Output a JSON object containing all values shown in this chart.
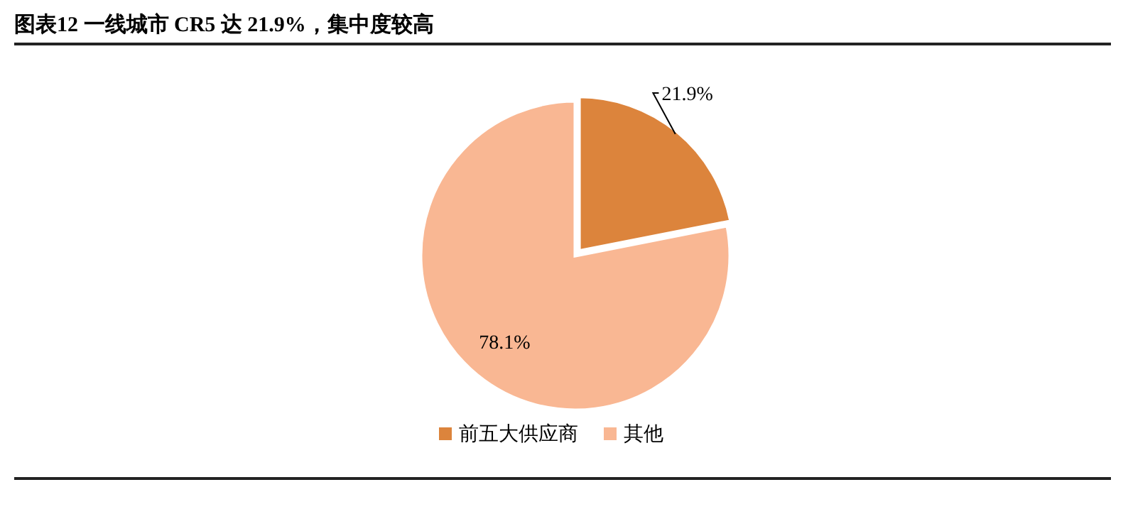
{
  "chart_data": {
    "type": "pie",
    "title": "图表12 一线城市 CR5 达 21.9%，集中度较高",
    "categories": [
      "前五大供应商",
      "其他"
    ],
    "values": [
      21.9,
      78.1
    ],
    "colors": [
      "#dc843c",
      "#f9b793"
    ],
    "value_labels": [
      "21.9%",
      "78.1%"
    ],
    "legend": "bottom"
  }
}
